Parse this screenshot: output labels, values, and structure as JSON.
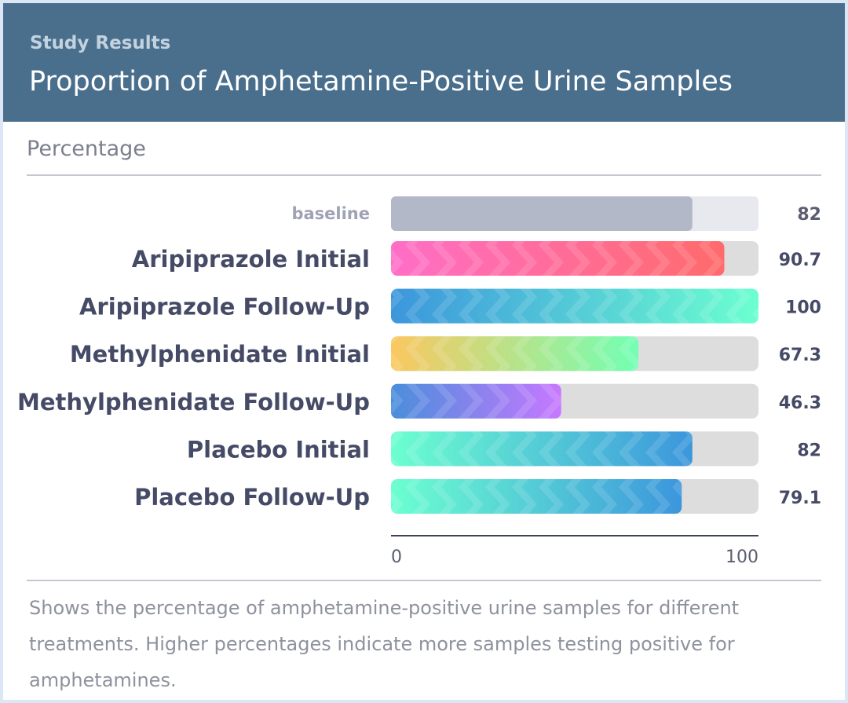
{
  "header": {
    "eyebrow": "Study Results",
    "title": "Proportion of Amphetamine-Positive Urine Samples"
  },
  "section_label": "Percentage",
  "caption": "Shows the percentage of amphetamine-positive urine samples for different treatments. Higher percentages indicate more samples testing positive for amphetamines.",
  "chart_data": {
    "type": "bar",
    "orientation": "horizontal",
    "title": "Proportion of Amphetamine-Positive Urine Samples",
    "xlabel": "Percentage",
    "xlim": [
      0,
      100
    ],
    "x_ticks": [
      "0",
      "100"
    ],
    "baseline": {
      "label": "baseline",
      "value": 82,
      "value_label": "82",
      "color": "#b2b8c8"
    },
    "categories": [
      "Aripiprazole Initial",
      "Aripiprazole Follow-Up",
      "Methylphenidate Initial",
      "Methylphenidate Follow-Up",
      "Placebo Initial",
      "Placebo Follow-Up"
    ],
    "values": [
      90.7,
      100,
      67.3,
      46.3,
      82,
      79.1
    ],
    "value_labels": [
      "90.7",
      "100",
      "67.3",
      "46.3",
      "82",
      "79.1"
    ],
    "bar_gradients": [
      [
        "#ff6ec7",
        "#ff6b6b"
      ],
      [
        "#3c96dc",
        "#6cffd0"
      ],
      [
        "#fbc760",
        "#72ffb4"
      ],
      [
        "#4a8edb",
        "#c778ff"
      ],
      [
        "#6cffd0",
        "#3c96dc"
      ],
      [
        "#6cffd0",
        "#3c96dc"
      ]
    ],
    "track_color": "#dddddd",
    "grid": false,
    "legend": "none"
  }
}
